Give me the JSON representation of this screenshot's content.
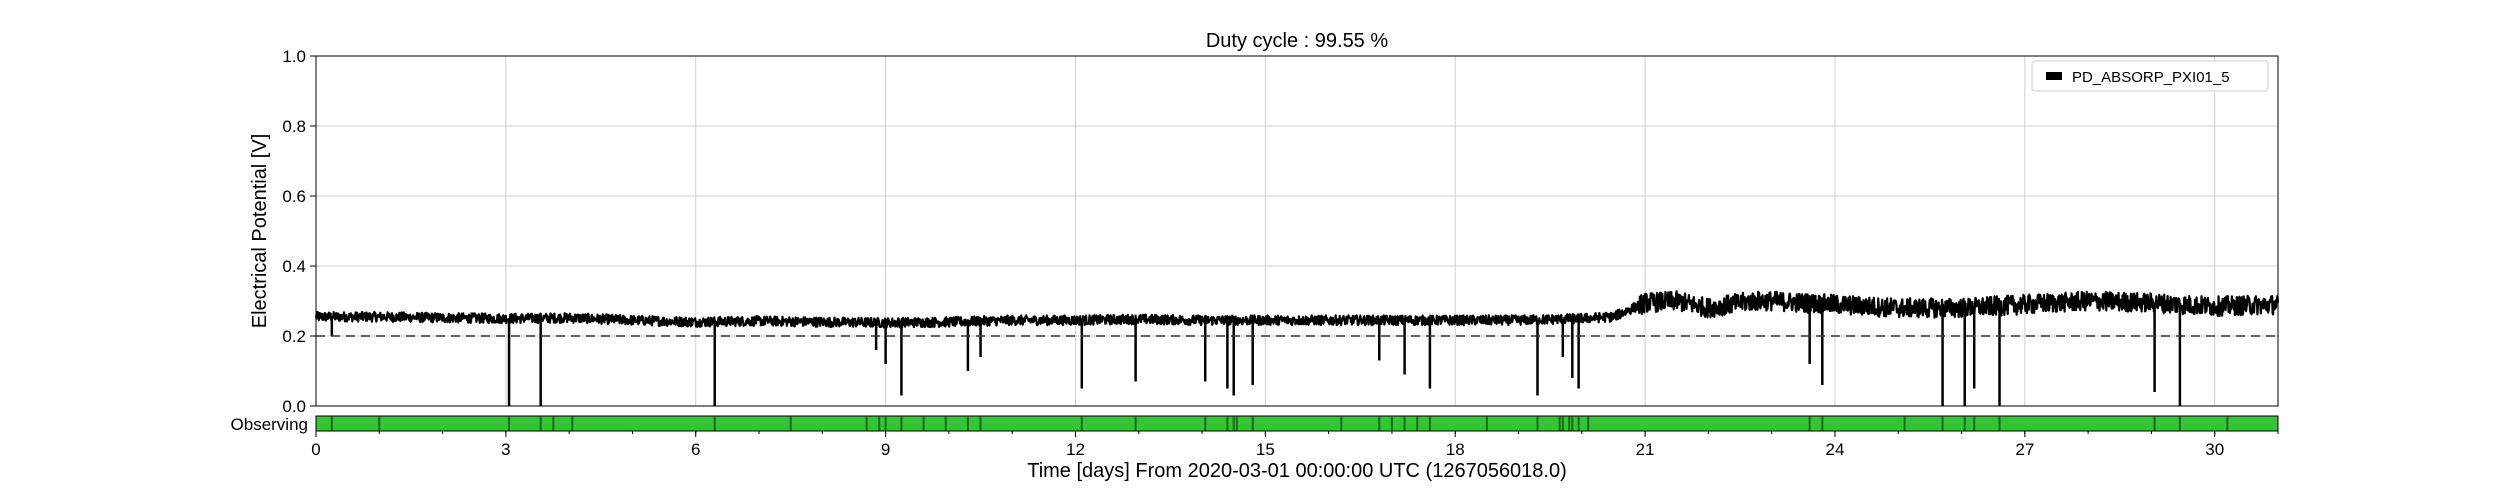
{
  "chart_data": {
    "type": "line",
    "title": "Duty cycle : 99.55 %",
    "xlabel": "Time [days] From 2020-03-01 00:00:00 UTC (1267056018.0)",
    "ylabel": "Electrical Potential [V]",
    "xlim": [
      0,
      31
    ],
    "ylim": [
      0,
      1
    ],
    "xticks": [
      0,
      3,
      6,
      9,
      12,
      15,
      18,
      21,
      24,
      27,
      30
    ],
    "xtick_labels": [
      "0",
      "3",
      "6",
      "9",
      "12",
      "15",
      "18",
      "21",
      "24",
      "27",
      "30"
    ],
    "yticks": [
      0,
      0.2,
      0.4,
      0.6,
      0.8,
      1.0
    ],
    "ytick_labels": [
      "0.0",
      "0.2",
      "0.4",
      "0.6",
      "0.8",
      "1.0"
    ],
    "grid": true,
    "legend": {
      "placement": "top-right",
      "entries": [
        "PD_ABSORP_PXI01_5"
      ]
    },
    "threshold": 0.2,
    "series": [
      {
        "name": "PD_ABSORP_PXI01_5",
        "color": "#000000",
        "baseline": [
          [
            0,
            0.255
          ],
          [
            1,
            0.255
          ],
          [
            2,
            0.252
          ],
          [
            3,
            0.25
          ],
          [
            4,
            0.252
          ],
          [
            5,
            0.245
          ],
          [
            6,
            0.24
          ],
          [
            7,
            0.243
          ],
          [
            8,
            0.24
          ],
          [
            9,
            0.238
          ],
          [
            10,
            0.24
          ],
          [
            11,
            0.245
          ],
          [
            12,
            0.245
          ],
          [
            13,
            0.248
          ],
          [
            14,
            0.245
          ],
          [
            15,
            0.245
          ],
          [
            16,
            0.245
          ],
          [
            17,
            0.245
          ],
          [
            18,
            0.245
          ],
          [
            19,
            0.245
          ],
          [
            20,
            0.25
          ],
          [
            20.5,
            0.255
          ],
          [
            21,
            0.295
          ],
          [
            21.5,
            0.3
          ],
          [
            22,
            0.28
          ],
          [
            22.7,
            0.3
          ],
          [
            23,
            0.3
          ],
          [
            24,
            0.29
          ],
          [
            25,
            0.28
          ],
          [
            26,
            0.28
          ],
          [
            27,
            0.29
          ],
          [
            28,
            0.3
          ],
          [
            29,
            0.295
          ],
          [
            30,
            0.285
          ],
          [
            31,
            0.29
          ]
        ],
        "dips": [
          [
            0.25,
            0.2
          ],
          [
            3.05,
            0.0
          ],
          [
            3.55,
            0.0
          ],
          [
            6.3,
            0.0
          ],
          [
            8.85,
            0.16
          ],
          [
            9.0,
            0.12
          ],
          [
            9.25,
            0.03
          ],
          [
            10.3,
            0.1
          ],
          [
            10.5,
            0.14
          ],
          [
            12.1,
            0.05
          ],
          [
            12.95,
            0.07
          ],
          [
            14.05,
            0.07
          ],
          [
            14.4,
            0.05
          ],
          [
            14.5,
            0.03
          ],
          [
            14.8,
            0.06
          ],
          [
            16.8,
            0.13
          ],
          [
            17.2,
            0.09
          ],
          [
            17.6,
            0.05
          ],
          [
            19.3,
            0.03
          ],
          [
            19.7,
            0.14
          ],
          [
            19.85,
            0.08
          ],
          [
            19.95,
            0.05
          ],
          [
            23.6,
            0.12
          ],
          [
            23.8,
            0.06
          ],
          [
            25.7,
            0.0
          ],
          [
            26.05,
            0.0
          ],
          [
            26.2,
            0.05
          ],
          [
            26.6,
            0.0
          ],
          [
            29.05,
            0.04
          ],
          [
            29.45,
            0.0
          ]
        ]
      }
    ],
    "observing": {
      "label": "Observing",
      "color": "#33c633",
      "gap_color": "#1a6e1a",
      "gaps": [
        0.25,
        1.0,
        3.05,
        3.55,
        3.75,
        4.05,
        6.3,
        7.5,
        8.7,
        8.9,
        9.0,
        9.25,
        9.6,
        9.95,
        10.3,
        10.5,
        12.1,
        12.95,
        14.05,
        14.4,
        14.5,
        14.55,
        14.8,
        16.2,
        16.8,
        17.0,
        17.2,
        17.4,
        17.6,
        18.5,
        19.3,
        19.65,
        19.7,
        19.8,
        19.85,
        19.95,
        20.1,
        23.6,
        23.8,
        25.1,
        25.7,
        26.05,
        26.2,
        26.6,
        29.05,
        29.45,
        30.2
      ]
    }
  }
}
